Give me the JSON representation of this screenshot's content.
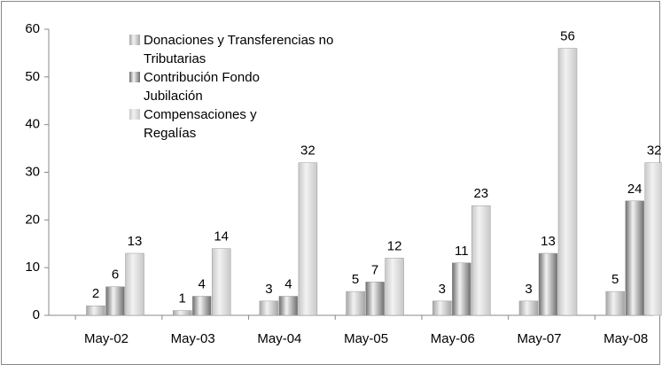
{
  "chart_data": {
    "type": "bar",
    "categories": [
      "May-02",
      "May-03",
      "May-04",
      "May-05",
      "May-06",
      "May-07",
      "May-08"
    ],
    "series": [
      {
        "name": "Donaciones y Transferencias no Tributarias",
        "color": "#a6a6a6",
        "values": [
          2,
          1,
          3,
          5,
          3,
          3,
          5
        ]
      },
      {
        "name": "Contribución Fondo Jubilación",
        "color": "#6e6e6e",
        "values": [
          6,
          4,
          4,
          7,
          11,
          13,
          24
        ]
      },
      {
        "name": "Compensaciones y Regalías",
        "color": "#c8c8c8",
        "values": [
          13,
          14,
          32,
          12,
          23,
          56,
          32
        ]
      }
    ],
    "ylim": [
      0,
      60
    ],
    "yticks": [
      0,
      10,
      20,
      30,
      40,
      50,
      60
    ],
    "legend": "top-left"
  }
}
